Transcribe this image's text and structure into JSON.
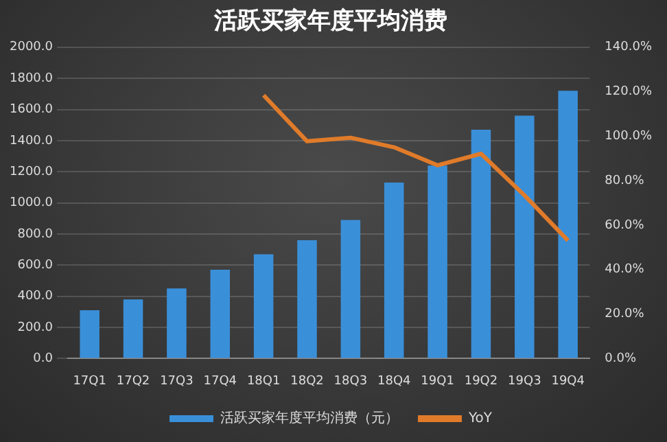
{
  "chart_data": {
    "type": "bar",
    "title": "活跃买家年度平均消费",
    "categories": [
      "17Q1",
      "17Q2",
      "17Q3",
      "17Q4",
      "18Q1",
      "18Q2",
      "18Q3",
      "18Q4",
      "19Q1",
      "19Q2",
      "19Q3",
      "19Q4"
    ],
    "series": [
      {
        "name": "活跃买家年度平均消费（元）",
        "color": "#3a8fd9",
        "values": [
          310,
          380,
          450,
          570,
          670,
          760,
          890,
          1130,
          1240,
          1470,
          1560,
          1720
        ]
      },
      {
        "name": "YoY",
        "type": "line",
        "axis": "y2",
        "color": "#e07b2a",
        "values": [
          null,
          null,
          null,
          null,
          118.4,
          97.7,
          99.3,
          95.0,
          86.9,
          92.1,
          73.4,
          53.1
        ]
      }
    ],
    "ylim": [
      0,
      2000
    ],
    "yticks": [
      {
        "value": 0,
        "label": "0.0"
      },
      {
        "value": 200,
        "label": "200.0"
      },
      {
        "value": 400,
        "label": "400.0"
      },
      {
        "value": 600,
        "label": "600.0"
      },
      {
        "value": 800,
        "label": "800.0"
      },
      {
        "value": 1000,
        "label": "1000.0"
      },
      {
        "value": 1200,
        "label": "1200.0"
      },
      {
        "value": 1400,
        "label": "1400.0"
      },
      {
        "value": 1600,
        "label": "1600.0"
      },
      {
        "value": 1800,
        "label": "1800.0"
      },
      {
        "value": 2000,
        "label": "2000.0"
      }
    ],
    "y2lim": [
      0,
      140
    ],
    "y2ticks": [
      {
        "value": 0,
        "label": "0.0%"
      },
      {
        "value": 20,
        "label": "20.0%"
      },
      {
        "value": 40,
        "label": "40.0%"
      },
      {
        "value": 60,
        "label": "60.0%"
      },
      {
        "value": 80,
        "label": "80.0%"
      },
      {
        "value": 100,
        "label": "100.0%"
      },
      {
        "value": 120,
        "label": "120.0%"
      },
      {
        "value": 140,
        "label": "140.0%"
      }
    ],
    "grid": "y",
    "legend": "bottom",
    "marker": "none",
    "line_style": "solid"
  }
}
